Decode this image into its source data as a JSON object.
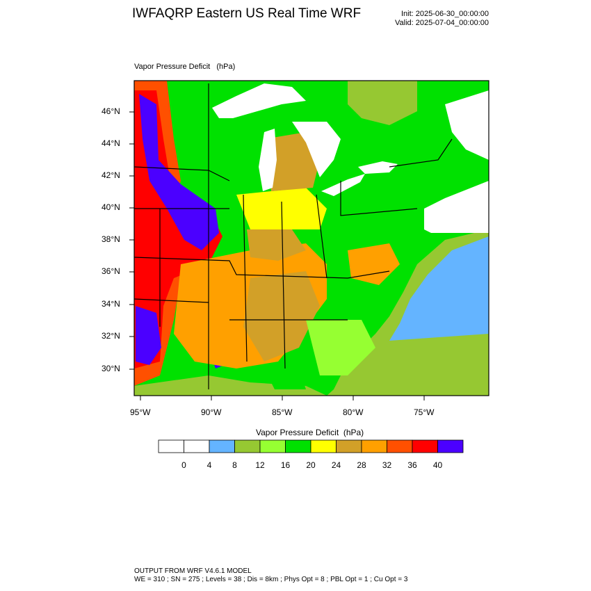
{
  "title": "IWFAQRP Eastern US Real Time WRF",
  "init_label": "Init: 2025-06-30_00:00:00",
  "valid_label": "Valid: 2025-07-04_00:00:00",
  "field_label": "Vapor Pressure Deficit   (hPa)",
  "legend": {
    "title": "Vapor Pressure Deficit  (hPa)",
    "ticks": [
      "0",
      "4",
      "8",
      "12",
      "16",
      "20",
      "24",
      "28",
      "32",
      "36",
      "40"
    ],
    "colors": [
      "#ffffff",
      "#ffffff",
      "#64b4ff",
      "#96c832",
      "#96ff32",
      "#00e100",
      "#ffff00",
      "#d2a028",
      "#ffa000",
      "#ff5000",
      "#ff0000",
      "#4b00ff"
    ]
  },
  "axes": {
    "lat_labels": [
      "46°N",
      "44°N",
      "42°N",
      "40°N",
      "38°N",
      "36°N",
      "34°N",
      "32°N",
      "30°N"
    ],
    "lon_labels": [
      "95°W",
      "90°W",
      "85°W",
      "80°W",
      "75°W"
    ]
  },
  "map_colors": {
    "water": "#64b4ff",
    "lake": "#ffffff",
    "ocean_shelf": "#96c832",
    "border": "#000000"
  },
  "footer": {
    "line1": "OUTPUT FROM WRF V4.6.1 MODEL",
    "line2": "WE = 310 ; SN = 275 ; Levels = 38 ; Dis = 8km ; Phys Opt = 8 ; PBL Opt = 1 ; Cu Opt = 3"
  }
}
